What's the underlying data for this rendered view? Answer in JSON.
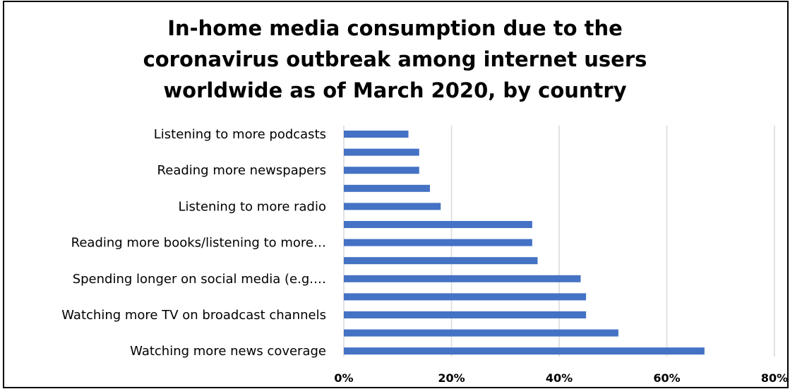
{
  "chart_data": {
    "type": "bar",
    "orientation": "horizontal",
    "title_lines": [
      "In-home media consumption due to the",
      "coronavirus outbreak among internet users",
      "worldwide as of March 2020, by country"
    ],
    "categories": [
      "Listening to more podcasts",
      "",
      "Reading more newspapers",
      "",
      "Listening to more radio",
      "",
      "Reading more books/listening to more…",
      "",
      "Spending longer on social media (e.g.…",
      "",
      "Watching more TV on broadcast channels",
      "",
      "Watching more news coverage"
    ],
    "values": [
      12,
      14,
      14,
      16,
      18,
      35,
      35,
      36,
      44,
      45,
      45,
      51,
      67
    ],
    "xlim": [
      0,
      80
    ],
    "xticks": [
      0,
      20,
      40,
      60,
      80
    ],
    "xtick_labels": [
      "0%",
      "20%",
      "40%",
      "60%",
      "80%"
    ],
    "grid": true,
    "bar_color": "#4472C4",
    "grid_color": "#D9D9D9"
  }
}
